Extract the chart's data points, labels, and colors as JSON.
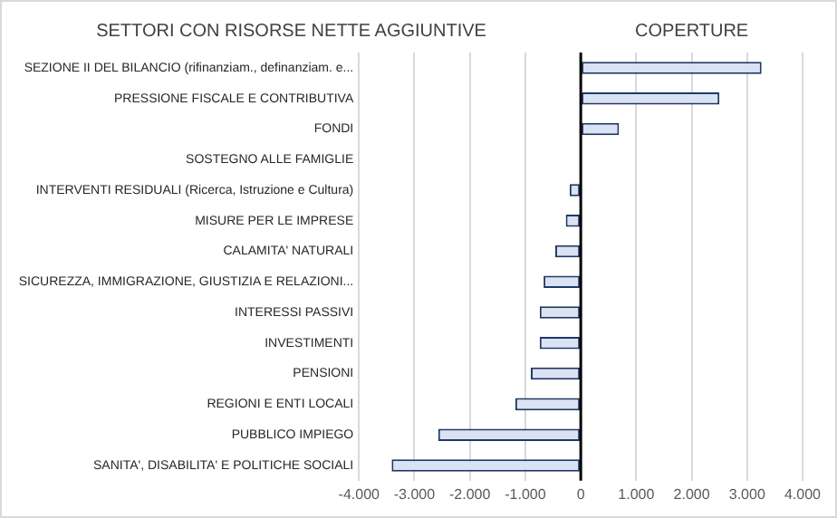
{
  "chart_data": {
    "type": "bar",
    "orientation": "horizontal",
    "title": "SETTORI CON RISORSE NETTE AGGIUNTIVE",
    "annotations": [
      "COPERTURE"
    ],
    "categories": [
      "SEZIONE II DEL BILANCIO (rifinanziam., definanziam. e...",
      "PRESSIONE FISCALE E CONTRIBUTIVA",
      "FONDI",
      "SOSTEGNO ALLE FAMIGLIE",
      "INTERVENTI RESIDUALI (Ricerca, Istruzione e Cultura)",
      "MISURE PER LE IMPRESE",
      "CALAMITA' NATURALI",
      "SICUREZZA, IMMIGRAZIONE, GIUSTIZIA E RELAZIONI...",
      "INTERESSI PASSIVI",
      "INVESTIMENTI",
      "PENSIONI",
      "REGIONI E ENTI LOCALI",
      "PUBBLICO IMPIEGO",
      "SANITA', DISABILITA' E POLITICHE SOCIALI"
    ],
    "values": [
      3260,
      2500,
      690,
      0,
      -200,
      -270,
      -460,
      -670,
      -740,
      -740,
      -900,
      -1180,
      -2570,
      -3410
    ],
    "color": "#dae3f3",
    "xlim": [
      -4000,
      4000
    ],
    "xticks": [
      {
        "value": -4000,
        "label": "-4.000"
      },
      {
        "value": -3000,
        "label": "-3.000"
      },
      {
        "value": -2000,
        "label": "-2.000"
      },
      {
        "value": -1000,
        "label": "-1.000"
      },
      0,
      {
        "value": 1000,
        "label": "1.000"
      },
      {
        "value": 2000,
        "label": "2.000"
      },
      {
        "value": 3000,
        "label": "3.000"
      },
      {
        "value": 4000,
        "label": "4.000"
      }
    ],
    "grid": "x",
    "legend": false
  }
}
